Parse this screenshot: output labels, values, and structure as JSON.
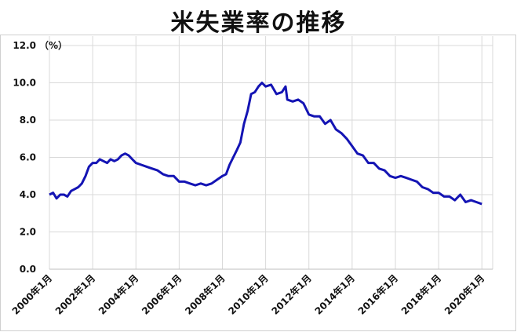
{
  "chart_data": {
    "type": "line",
    "title": "米失業率の推移",
    "ylabel": "（%）",
    "xlabel": "",
    "ylim": [
      0,
      12
    ],
    "y_ticks": [
      "0.0",
      "2.0",
      "4.0",
      "6.0",
      "8.0",
      "10.0",
      "12.0"
    ],
    "x_tick_labels": [
      "2000年1月",
      "2002年1月",
      "2004年1月",
      "2006年1月",
      "2008年1月",
      "2010年1月",
      "2012年1月",
      "2014年1月",
      "2016年1月",
      "2018年1月",
      "2020年1月"
    ],
    "x_range": [
      2000.0,
      2020.5
    ],
    "grid": true,
    "legend": "none",
    "series": [
      {
        "color": "#1414b4",
        "x": [
          2000.0,
          2000.17,
          2000.33,
          2000.5,
          2000.67,
          2000.83,
          2001.0,
          2001.17,
          2001.33,
          2001.5,
          2001.67,
          2001.83,
          2002.0,
          2002.17,
          2002.33,
          2002.5,
          2002.67,
          2002.83,
          2003.0,
          2003.17,
          2003.33,
          2003.5,
          2003.67,
          2003.83,
          2004.0,
          2004.25,
          2004.5,
          2004.75,
          2005.0,
          2005.25,
          2005.5,
          2005.75,
          2006.0,
          2006.25,
          2006.5,
          2006.75,
          2007.0,
          2007.25,
          2007.5,
          2007.75,
          2008.0,
          2008.17,
          2008.33,
          2008.5,
          2008.67,
          2008.83,
          2009.0,
          2009.17,
          2009.33,
          2009.5,
          2009.67,
          2009.83,
          2010.0,
          2010.25,
          2010.5,
          2010.75,
          2010.92,
          2011.0,
          2011.25,
          2011.5,
          2011.75,
          2012.0,
          2012.25,
          2012.5,
          2012.75,
          2013.0,
          2013.25,
          2013.5,
          2013.75,
          2014.0,
          2014.25,
          2014.5,
          2014.75,
          2015.0,
          2015.25,
          2015.5,
          2015.75,
          2016.0,
          2016.25,
          2016.5,
          2016.75,
          2017.0,
          2017.25,
          2017.5,
          2017.75,
          2018.0,
          2018.25,
          2018.5,
          2018.75,
          2019.0,
          2019.25,
          2019.5,
          2019.75,
          2020.0
        ],
        "y": [
          4.0,
          4.1,
          3.8,
          4.0,
          4.0,
          3.9,
          4.2,
          4.3,
          4.4,
          4.6,
          5.0,
          5.5,
          5.7,
          5.7,
          5.9,
          5.8,
          5.7,
          5.9,
          5.8,
          5.9,
          6.1,
          6.2,
          6.1,
          5.9,
          5.7,
          5.6,
          5.5,
          5.4,
          5.3,
          5.1,
          5.0,
          5.0,
          4.7,
          4.7,
          4.6,
          4.5,
          4.6,
          4.5,
          4.6,
          4.8,
          5.0,
          5.1,
          5.6,
          6.0,
          6.4,
          6.8,
          7.8,
          8.5,
          9.4,
          9.5,
          9.8,
          10.0,
          9.8,
          9.9,
          9.4,
          9.5,
          9.8,
          9.1,
          9.0,
          9.1,
          8.9,
          8.3,
          8.2,
          8.2,
          7.8,
          8.0,
          7.5,
          7.3,
          7.0,
          6.6,
          6.2,
          6.1,
          5.7,
          5.7,
          5.4,
          5.3,
          5.0,
          4.9,
          5.0,
          4.9,
          4.8,
          4.7,
          4.4,
          4.3,
          4.1,
          4.1,
          3.9,
          3.9,
          3.7,
          4.0,
          3.6,
          3.7,
          3.6,
          3.5
        ]
      }
    ]
  }
}
